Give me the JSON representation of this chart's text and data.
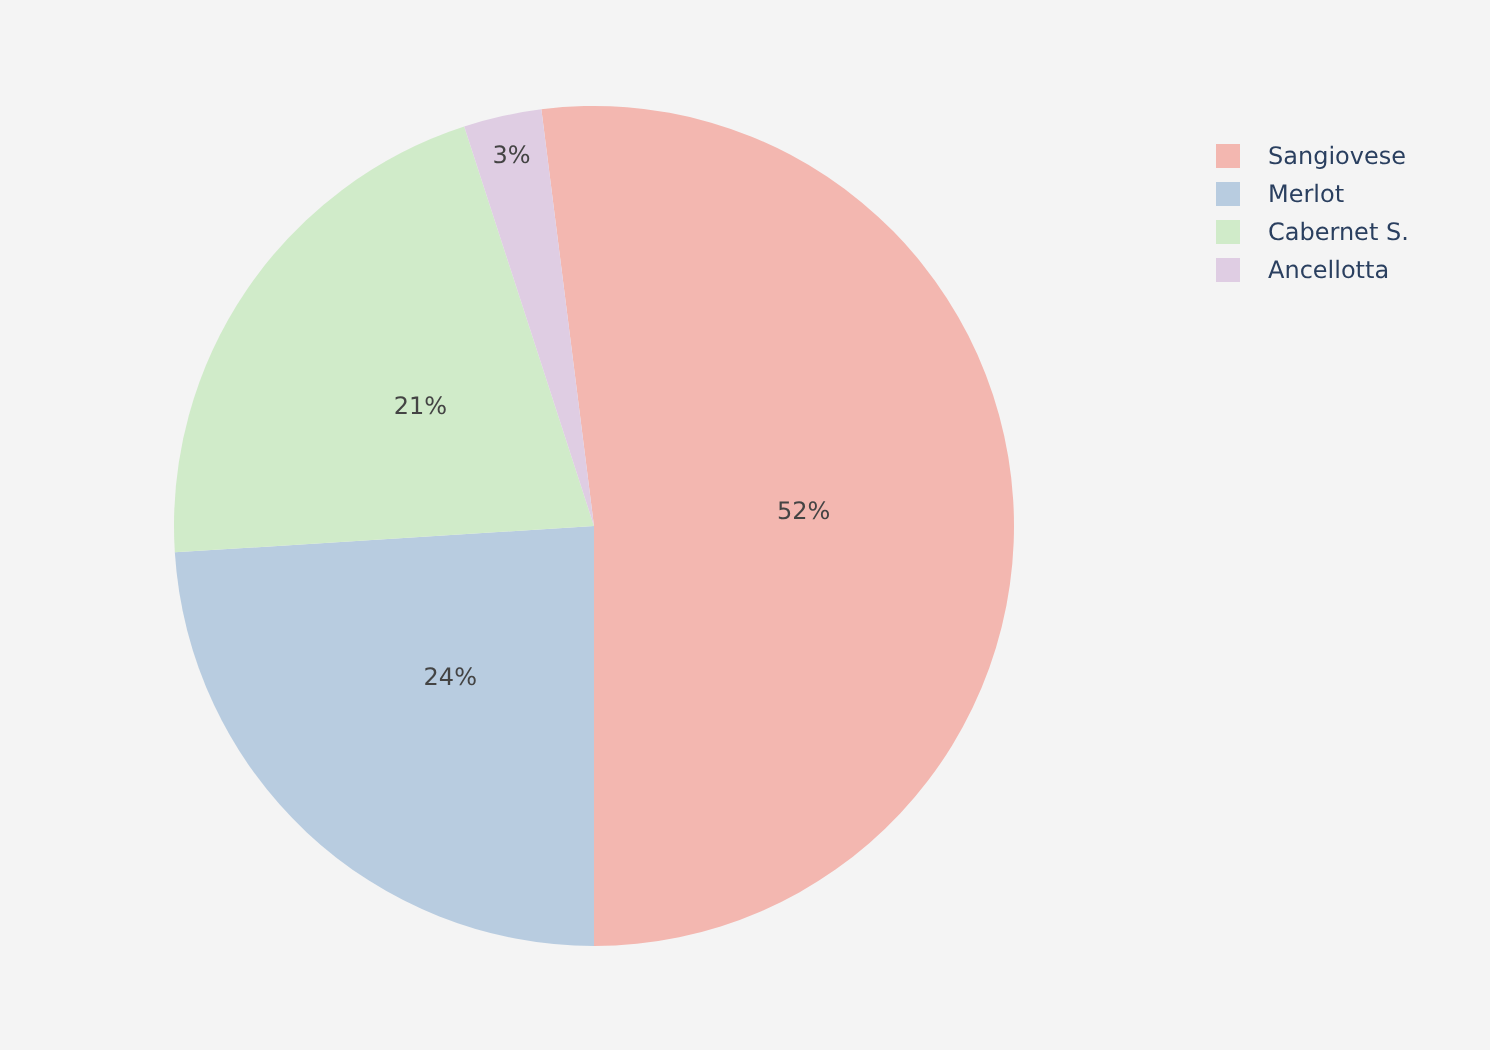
{
  "chart_data": {
    "type": "pie",
    "categories": [
      "Sangiovese",
      "Merlot",
      "Cabernet S.",
      "Ancellotta"
    ],
    "values": [
      52,
      24,
      21,
      3
    ],
    "colors": [
      "#f3b7b0",
      "#b8cce0",
      "#d0ebc9",
      "#dfcde3"
    ],
    "value_labels": [
      "52%",
      "24%",
      "21%",
      "3%"
    ],
    "legend": "top right"
  }
}
